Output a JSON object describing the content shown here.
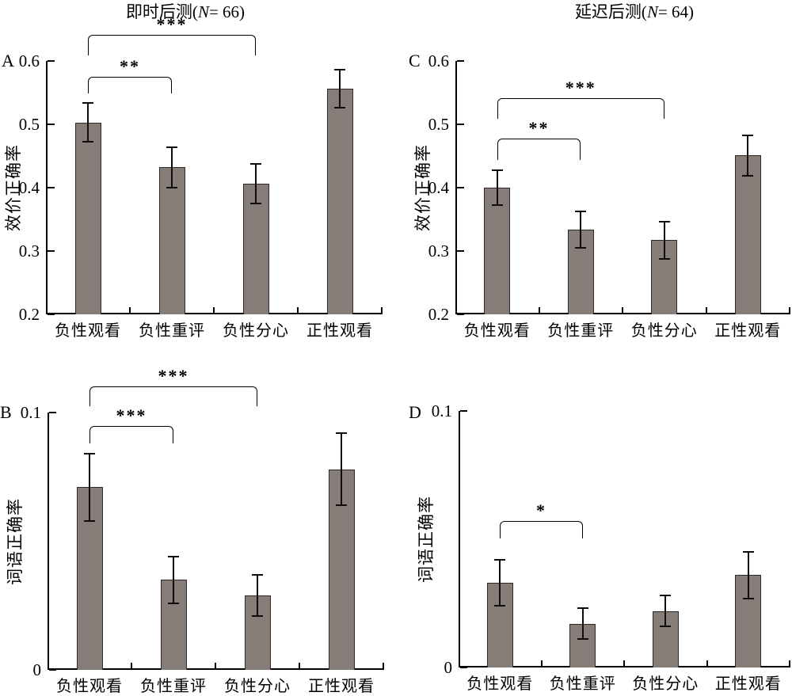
{
  "columns": [
    {
      "title_prefix": "即时后测(",
      "title_n": "N",
      "title_suffix": "= 66)",
      "full_title": "即时后测(N= 66)"
    },
    {
      "title_prefix": "延迟后测(",
      "title_n": "N",
      "title_suffix": "= 64)",
      "full_title": "延迟后测(N= 64)"
    }
  ],
  "colors": {
    "bar_fill": "#867d78",
    "bar_border": "#2e2927",
    "axis": "#000000",
    "text": "#000000"
  },
  "chart_data": [
    {
      "panel": "A",
      "type": "bar",
      "group": "即时后测(N= 66)",
      "ylabel": "效价正确率",
      "categories": [
        "负性观看",
        "负性重评",
        "负性分心",
        "正性观看"
      ],
      "values": [
        0.503,
        0.432,
        0.406,
        0.556
      ],
      "errors": [
        0.031,
        0.032,
        0.031,
        0.03
      ],
      "ylim": [
        0.2,
        0.6
      ],
      "yticks": [
        0.2,
        0.3,
        0.4,
        0.5,
        0.6
      ],
      "ytick_labels": [
        "0.2",
        "0.3",
        "0.4",
        "0.5",
        "0.6"
      ],
      "grid": false,
      "significance": [
        {
          "from": 0,
          "to": 1,
          "label": "**",
          "y": 0.575,
          "drop": 0.026
        },
        {
          "from": 0,
          "to": 2,
          "label": "***",
          "y": 0.641,
          "drop": 0.032
        }
      ]
    },
    {
      "panel": "B",
      "type": "bar",
      "group": "即时后测(N= 66)",
      "ylabel": "词语正确率",
      "categories": [
        "负性观看",
        "负性重评",
        "负性分心",
        "正性观看"
      ],
      "values": [
        0.071,
        0.035,
        0.029,
        0.078
      ],
      "errors": [
        0.013,
        0.009,
        0.008,
        0.014
      ],
      "ylim": [
        0,
        0.1
      ],
      "yticks": [
        0,
        0.1
      ],
      "ytick_labels": [
        "0",
        "0.1"
      ],
      "grid": false,
      "significance": [
        {
          "from": 0,
          "to": 1,
          "label": "***",
          "y": 0.0948,
          "drop": 0.0068
        },
        {
          "from": 0,
          "to": 2,
          "label": "***",
          "y": 0.1102,
          "drop": 0.0077
        }
      ]
    },
    {
      "panel": "C",
      "type": "bar",
      "group": "延迟后测(N= 64)",
      "ylabel": "效价正确率",
      "categories": [
        "负性观看",
        "负性重评",
        "负性分心",
        "正性观看"
      ],
      "values": [
        0.4,
        0.334,
        0.317,
        0.451
      ],
      "errors": [
        0.028,
        0.029,
        0.029,
        0.032
      ],
      "ylim": [
        0.2,
        0.6
      ],
      "yticks": [
        0.2,
        0.3,
        0.4,
        0.5,
        0.6
      ],
      "ytick_labels": [
        "0.2",
        "0.3",
        "0.4",
        "0.5",
        "0.6"
      ],
      "grid": false,
      "significance": [
        {
          "from": 0,
          "to": 1,
          "label": "**",
          "y": 0.4775,
          "drop": 0.034
        },
        {
          "from": 0,
          "to": 2,
          "label": "***",
          "y": 0.541,
          "drop": 0.032
        }
      ]
    },
    {
      "panel": "D",
      "type": "bar",
      "group": "延迟后测(N= 64)",
      "ylabel": "词语正确率",
      "categories": [
        "负性观看",
        "负性重评",
        "负性分心",
        "正性观看"
      ],
      "values": [
        0.033,
        0.017,
        0.022,
        0.036
      ],
      "errors": [
        0.009,
        0.006,
        0.006,
        0.009
      ],
      "ylim": [
        0,
        0.1
      ],
      "yticks": [
        0,
        0.1
      ],
      "ytick_labels": [
        "0",
        "0.1"
      ],
      "grid": false,
      "significance": [
        {
          "from": 0,
          "to": 1,
          "label": "*",
          "y": 0.0571,
          "drop": 0.0068
        }
      ]
    }
  ]
}
